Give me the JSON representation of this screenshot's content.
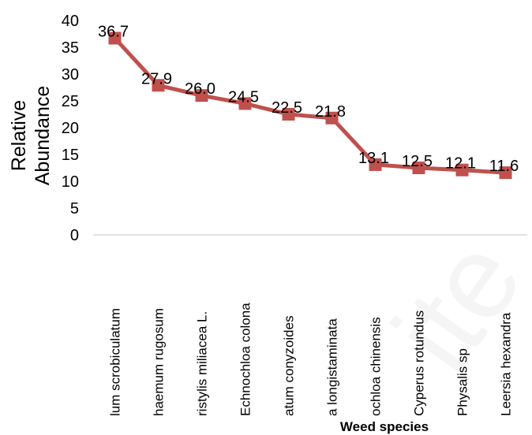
{
  "chart_data": {
    "type": "line",
    "title": "",
    "xlabel": "Weed species",
    "ylabel": "Relative Abundance",
    "ylim": [
      0,
      40
    ],
    "yticks": [
      0,
      5,
      10,
      15,
      20,
      25,
      30,
      35,
      40
    ],
    "categories": [
      "lum scrobiculatum",
      "haemum rugosum",
      "ristylis  miliacea L.",
      "Echnochloa colona",
      "atum conyzoides",
      "a longistaminata",
      "ochloa chinensis",
      "Cyperus rotundus",
      "Physalis sp",
      "Leersia hexandra"
    ],
    "series": [
      {
        "values": [
          36.7,
          27.9,
          26.0,
          24.5,
          22.5,
          21.8,
          13.1,
          12.5,
          12.1,
          11.6
        ],
        "data_labels": [
          "36.7",
          "27.9",
          "26.0",
          "24.5",
          "22.5",
          "21.8",
          "13.1",
          "12.5",
          "12.1",
          "11.6"
        ]
      }
    ],
    "grid": false,
    "legend": "none",
    "colors": {
      "line": "#c0504d",
      "marker": "#c0504d",
      "axis": "#d9d9d9"
    }
  }
}
